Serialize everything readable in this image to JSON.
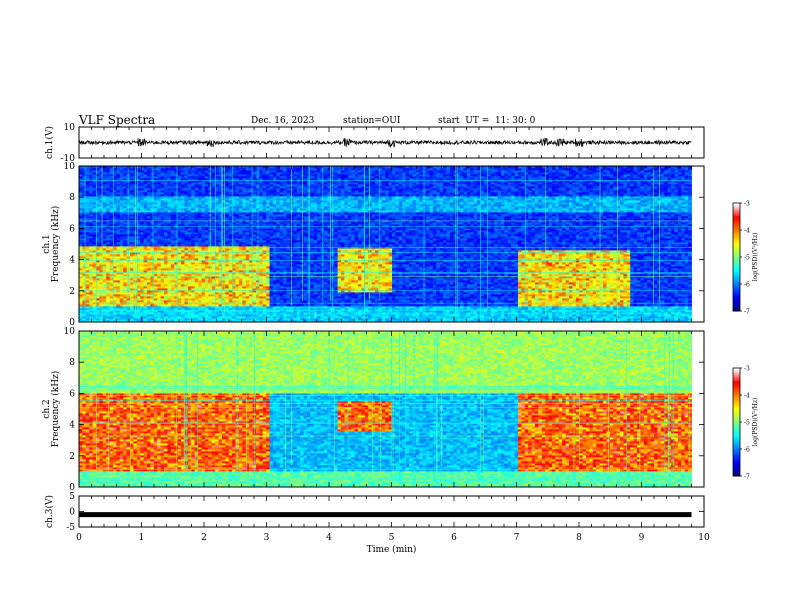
{
  "header": {
    "title": "VLF Spectra",
    "date": "Dec. 16, 2023",
    "station": "station=OUI",
    "start": "start  UT =  11: 30: 0"
  },
  "chart_data": [
    {
      "type": "line",
      "panel": "ch1-waveform",
      "ylabel": "ch.1(V)",
      "ylim": [
        -10,
        10
      ],
      "yticks": [
        "10",
        "-10"
      ],
      "baseline": 0,
      "amplitude_typical": 1.2,
      "bursts_min": [
        1.0,
        2.1,
        4.3,
        5.0,
        7.45,
        7.7,
        8.0
      ],
      "color": "#000000"
    },
    {
      "type": "heatmap",
      "panel": "ch1-spectrogram",
      "ylabel": "ch.1\nFrequency (kHz)",
      "ylim": [
        0,
        10
      ],
      "yticks": [
        "0",
        "2",
        "4",
        "6",
        "8",
        "10"
      ],
      "xlim": [
        0,
        10
      ],
      "data_extent_min": [
        0,
        9.8
      ],
      "intense_bands": [
        {
          "t": [
            0,
            3.0
          ],
          "f": [
            1.0,
            4.8
          ]
        },
        {
          "t": [
            4.1,
            5.0
          ],
          "f": [
            1.8,
            4.7
          ]
        },
        {
          "t": [
            7.0,
            8.8
          ],
          "f": [
            1.0,
            4.6
          ]
        }
      ],
      "colorbar": {
        "label": "log(PSD)(V²/Hz)",
        "range": [
          -7,
          -3
        ],
        "ticks": [
          "-3",
          "-4",
          "-5",
          "-6",
          "-7"
        ]
      }
    },
    {
      "type": "heatmap",
      "panel": "ch2-spectrogram",
      "ylabel": "ch.2\nFrequency (kHz)",
      "ylim": [
        0,
        10
      ],
      "yticks": [
        "0",
        "2",
        "4",
        "6",
        "8",
        "10"
      ],
      "xlim": [
        0,
        10
      ],
      "data_extent_min": [
        0,
        9.8
      ],
      "intense_bands": [
        {
          "t": [
            0,
            3.0
          ],
          "f": [
            1.0,
            6.0
          ]
        },
        {
          "t": [
            4.1,
            5.0
          ],
          "f": [
            3.5,
            5.5
          ]
        },
        {
          "t": [
            7.0,
            9.8
          ],
          "f": [
            1.0,
            6.0
          ]
        }
      ],
      "colorbar": {
        "label": "log(PSD)(V²/Hz)",
        "range": [
          -7,
          -3
        ],
        "ticks": [
          "-3",
          "-4",
          "-5",
          "-6",
          "-7"
        ]
      }
    },
    {
      "type": "line",
      "panel": "ch3-waveform",
      "ylabel": "ch.3(V)",
      "ylim": [
        -5,
        5
      ],
      "yticks": [
        "5",
        "0",
        "-5"
      ],
      "value": -1,
      "color": "#000000"
    }
  ],
  "xaxis": {
    "label": "Time (min)",
    "ticks": [
      "0",
      "1",
      "2",
      "3",
      "4",
      "5",
      "6",
      "7",
      "8",
      "9",
      "10"
    ]
  },
  "colormap": [
    "#00007f",
    "#0000ff",
    "#007fff",
    "#00ffff",
    "#7fff7f",
    "#ffff00",
    "#ff7f00",
    "#ff0000",
    "#ffffff"
  ]
}
